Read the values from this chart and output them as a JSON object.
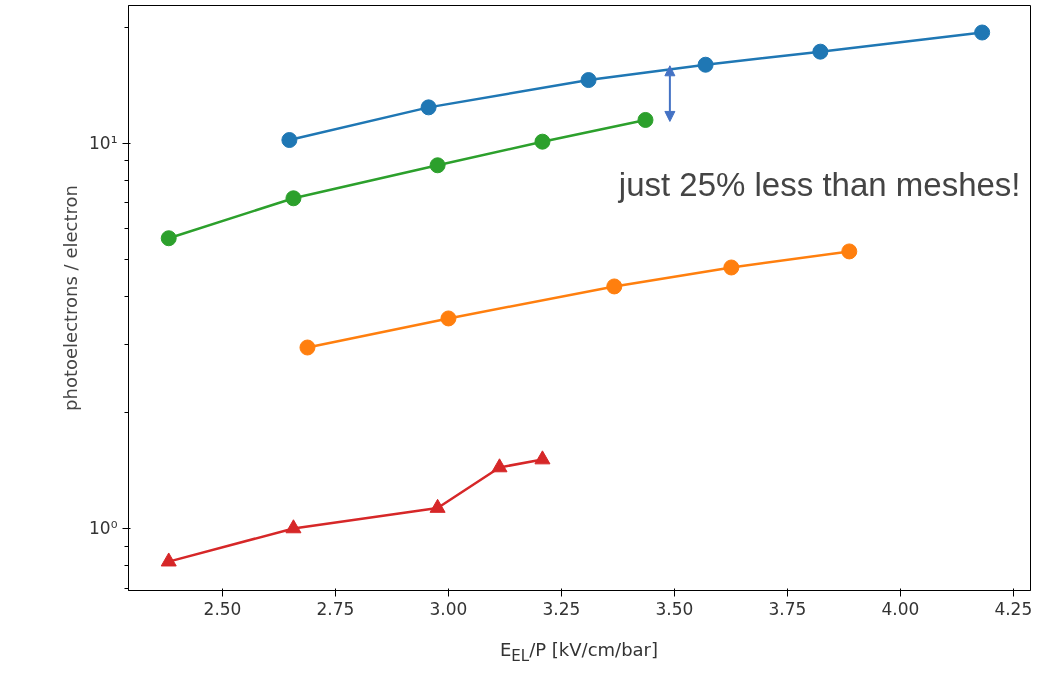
{
  "chart_data": {
    "type": "line",
    "xlabel": "E$_{EL}$/P [kV/cm/bar]",
    "ylabel": "photoelectrons / electron",
    "log": "y",
    "grid": false,
    "marker": "circle",
    "xlim": [
      2.292,
      4.288
    ],
    "ylim": [
      0.69,
      22.8
    ],
    "xticks": [
      {
        "value": 2.5,
        "label": "2.50"
      },
      2.75,
      {
        "value": 3.0,
        "label": "3.00"
      },
      3.25,
      {
        "value": 3.5,
        "label": "3.50"
      },
      3.75,
      {
        "value": 4.0,
        "label": "4.00"
      },
      4.25
    ],
    "yticks": [
      {
        "value": 1,
        "label": "10⁰"
      },
      {
        "value": 10,
        "label": "10¹"
      }
    ],
    "annotations": [
      "just 25% less than meshes!"
    ],
    "series": [
      {
        "color": "#1f77b4",
        "x": [
          2.648,
          2.956,
          3.31,
          3.569,
          3.823,
          4.181
        ],
        "values": [
          10.2,
          12.4,
          14.6,
          16.0,
          17.3,
          19.4
        ]
      },
      {
        "color": "#2ca02c",
        "x": [
          2.381,
          2.657,
          2.976,
          3.208,
          3.436
        ],
        "values": [
          5.67,
          7.2,
          8.77,
          10.1,
          11.5
        ]
      },
      {
        "color": "#ff7f0e",
        "x": [
          2.688,
          3.0,
          3.367,
          3.626,
          3.887
        ],
        "values": [
          2.95,
          3.51,
          4.25,
          4.76,
          5.24
        ]
      },
      {
        "color": "#d62728",
        "marker": "triangle",
        "x": [
          2.381,
          2.657,
          2.976,
          3.113,
          3.208
        ],
        "values": [
          0.82,
          1.0,
          1.13,
          1.44,
          1.51
        ]
      }
    ]
  }
}
